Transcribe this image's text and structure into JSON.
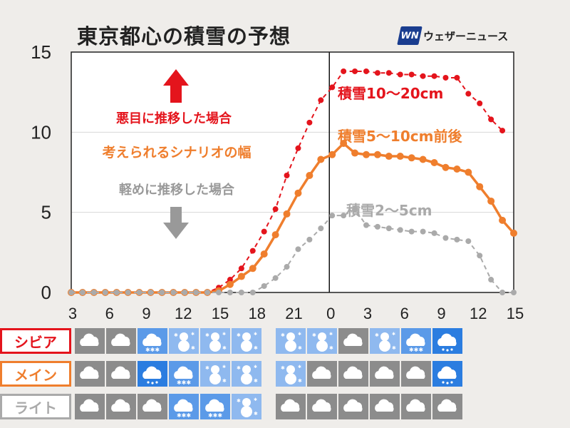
{
  "title": "東京都心の積雪の予想",
  "brand": {
    "logo": "WN",
    "name": "ウェザーニュース"
  },
  "chart_data": {
    "type": "line",
    "x_ticks": [
      "3",
      "6",
      "9",
      "12",
      "15",
      "18",
      "21",
      "0",
      "3",
      "6",
      "9",
      "12",
      "15"
    ],
    "ylim": [
      0,
      15
    ],
    "y_ticks": [
      0,
      5,
      10,
      15
    ],
    "grid": "horizontal",
    "series": [
      {
        "name": "積雪10～20cm",
        "color": "#e4141c",
        "style": "dashed",
        "values": [
          0,
          0,
          0,
          0,
          0,
          0,
          0,
          0,
          0,
          0,
          0,
          0,
          0,
          0.3,
          0.8,
          1.5,
          2.6,
          3.8,
          5.2,
          7.3,
          9.0,
          10.6,
          12.0,
          12.8,
          13.8,
          13.8,
          13.8,
          13.7,
          13.7,
          13.6,
          13.6,
          13.5,
          13.5,
          13.4,
          13.4,
          12.4,
          11.8,
          10.8,
          10.1
        ]
      },
      {
        "name": "積雪5～10cm前後",
        "color": "#ef7e2d",
        "style": "solid",
        "values": [
          0,
          0,
          0,
          0,
          0,
          0,
          0,
          0,
          0,
          0,
          0,
          0,
          0,
          0.1,
          0.5,
          1.0,
          1.5,
          2.4,
          3.6,
          4.9,
          6.2,
          7.3,
          8.3,
          8.6,
          9.3,
          8.7,
          8.6,
          8.6,
          8.5,
          8.5,
          8.4,
          8.3,
          8.1,
          7.8,
          7.7,
          7.5,
          6.6,
          5.7,
          4.5,
          3.7
        ]
      },
      {
        "name": "積雪2～5cm",
        "color": "#aaaaaa",
        "style": "dashed",
        "values": [
          0,
          0,
          0,
          0,
          0,
          0,
          0,
          0,
          0,
          0,
          0,
          0,
          0,
          0,
          0,
          0,
          0,
          0.4,
          0.9,
          1.6,
          2.7,
          3.3,
          4.0,
          4.8,
          4.8,
          5.2,
          4.2,
          4.1,
          4.0,
          3.9,
          3.8,
          3.8,
          3.7,
          3.4,
          3.3,
          3.2,
          2.3,
          0.8,
          0.0,
          0.0
        ]
      }
    ],
    "annotations": [
      {
        "text": "積雪10～20cm",
        "color": "#e4141c"
      },
      {
        "text": "積雪5～10cm前後",
        "color": "#ef7e2d"
      },
      {
        "text": "積雪2～5cm",
        "color": "#aaaaaa"
      },
      {
        "text": "悪目に推移した場合",
        "color": "#e4141c"
      },
      {
        "text": "考えられるシナリオの幅",
        "color": "#ef7e2d"
      },
      {
        "text": "軽めに推移した場合",
        "color": "#999999"
      }
    ]
  },
  "weather_table": {
    "rows": [
      {
        "label": "シビア",
        "color": "#e4141c",
        "cells": [
          "cloud",
          "cloud",
          "snow-cloud",
          "snowman",
          "snowman",
          "snowman",
          "snowman",
          "snowman",
          "cloud",
          "snowman",
          "snow-cloud",
          "rain-cloud"
        ]
      },
      {
        "label": "メイン",
        "color": "#ef7e2d",
        "cells": [
          "cloud",
          "cloud",
          "rain-cloud",
          "snow-cloud",
          "snowman",
          "snowman",
          "snowman",
          "cloud",
          "cloud",
          "cloud",
          "cloud",
          "rain-cloud"
        ]
      },
      {
        "label": "ライト",
        "color": "#aaaaaa",
        "cells": [
          "cloud",
          "cloud",
          "cloud",
          "snow-cloud",
          "snow-cloud",
          "snowman",
          "cloud",
          "cloud",
          "cloud",
          "cloud",
          "cloud",
          "cloud"
        ]
      }
    ]
  }
}
